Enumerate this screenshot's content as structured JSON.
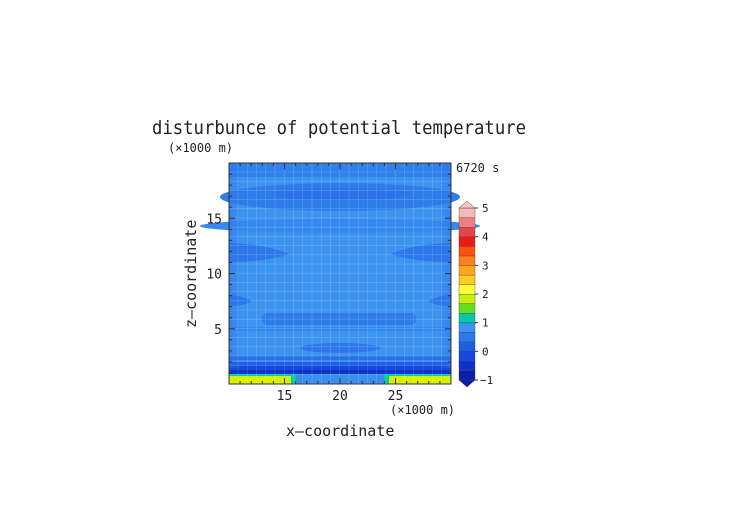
{
  "chart_data": {
    "type": "heatmap",
    "title": "disturbunce of potential temperature",
    "time_label": "6720 s",
    "xlabel": "x—coordinate",
    "ylabel": "z—coordinate",
    "x_unit": "(×1000 m)",
    "y_unit": "(×1000 m)",
    "xlim": [
      10,
      30
    ],
    "ylim": [
      0,
      20
    ],
    "x_ticks": [
      15,
      20,
      25
    ],
    "y_ticks": [
      5,
      10,
      15
    ],
    "colorbar": {
      "min": -1,
      "max": 5,
      "tick_values": [
        -1,
        0,
        1,
        2,
        3,
        4,
        5
      ],
      "colors": [
        "#0a1ea8",
        "#0d33c8",
        "#1446e0",
        "#1d5ee8",
        "#2a78ec",
        "#3c94f0",
        "#00c8a8",
        "#66dd22",
        "#c8f000",
        "#ffff33",
        "#ffcc22",
        "#ffa81e",
        "#ff8018",
        "#ff5010",
        "#f01818",
        "#e04848",
        "#f08080",
        "#f8b8b8"
      ]
    },
    "field_description_values": {
      "background_level": 0,
      "surface_max": 2,
      "surface_band_x": [
        [
          10,
          15.5
        ],
        [
          24.5,
          30
        ]
      ]
    }
  }
}
